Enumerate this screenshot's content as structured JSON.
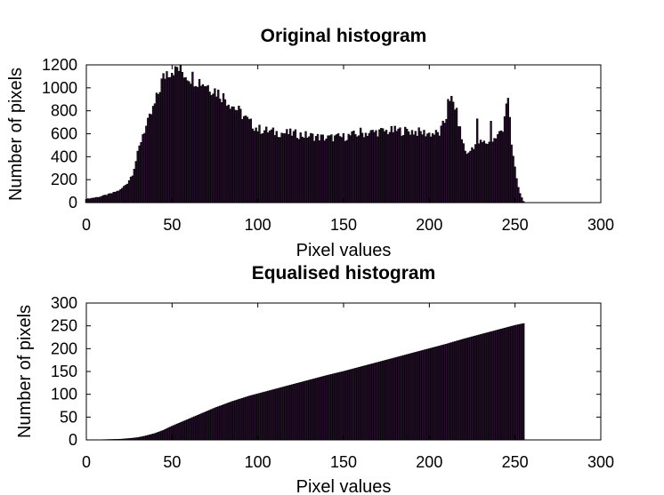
{
  "chart_data": [
    {
      "type": "bar",
      "title": "Original histogram",
      "xlabel": "Pixel values",
      "ylabel": "Number of pixels",
      "xlim": [
        0,
        300
      ],
      "ylim": [
        0,
        1200
      ],
      "xticks": [
        "0",
        "50",
        "100",
        "150",
        "200",
        "250",
        "300"
      ],
      "yticks": [
        "0",
        "200",
        "400",
        "600",
        "800",
        "1000",
        "1200"
      ],
      "grid": false,
      "bar_color": "#2a1030",
      "profile_x": [
        0,
        8,
        15,
        20,
        24,
        27,
        30,
        33,
        36,
        40,
        44,
        47,
        50,
        52,
        55,
        58,
        62,
        66,
        70,
        75,
        80,
        85,
        90,
        95,
        100,
        110,
        120,
        130,
        140,
        150,
        160,
        170,
        180,
        190,
        200,
        206,
        209,
        211,
        213,
        215,
        217,
        219,
        221,
        223,
        225,
        228,
        232,
        236,
        240,
        243,
        245,
        246,
        247,
        248,
        250,
        252,
        254,
        255
      ],
      "profile_y": [
        30,
        50,
        80,
        110,
        170,
        250,
        420,
        600,
        690,
        850,
        1050,
        1140,
        1160,
        1180,
        1150,
        1120,
        1090,
        1060,
        1030,
        980,
        920,
        850,
        780,
        700,
        640,
        610,
        600,
        580,
        560,
        570,
        600,
        615,
        625,
        620,
        600,
        600,
        700,
        800,
        890,
        840,
        700,
        560,
        450,
        420,
        480,
        520,
        520,
        520,
        580,
        650,
        880,
        910,
        700,
        500,
        300,
        130,
        40,
        10
      ],
      "spikes": [
        {
          "x": 52,
          "y": 1185
        },
        {
          "x": 160,
          "y": 650
        },
        {
          "x": 211,
          "y": 900
        },
        {
          "x": 228,
          "y": 730
        },
        {
          "x": 236,
          "y": 710
        },
        {
          "x": 246,
          "y": 910
        }
      ]
    },
    {
      "type": "bar",
      "title": "Equalised histogram",
      "xlabel": "Pixel values",
      "ylabel": "Number of pixels",
      "xlim": [
        0,
        300
      ],
      "ylim": [
        0,
        300
      ],
      "xticks": [
        "0",
        "50",
        "100",
        "150",
        "200",
        "250",
        "300"
      ],
      "yticks": [
        "0",
        "50",
        "100",
        "150",
        "200",
        "250",
        "300"
      ],
      "grid": false,
      "bar_color": "#2a1030",
      "profile_x": [
        0,
        10,
        20,
        25,
        30,
        35,
        40,
        45,
        50,
        55,
        60,
        65,
        70,
        75,
        80,
        85,
        90,
        95,
        100,
        110,
        120,
        130,
        140,
        150,
        160,
        170,
        180,
        190,
        200,
        210,
        220,
        230,
        240,
        250,
        255
      ],
      "profile_y": [
        0,
        0.5,
        1.5,
        3,
        5,
        9,
        14,
        21,
        30,
        38,
        46,
        54,
        62,
        70,
        77,
        84,
        90,
        96,
        101,
        111,
        121,
        131,
        141,
        150,
        160,
        170,
        180,
        190,
        200,
        210,
        221,
        231,
        241,
        251,
        255
      ]
    }
  ]
}
